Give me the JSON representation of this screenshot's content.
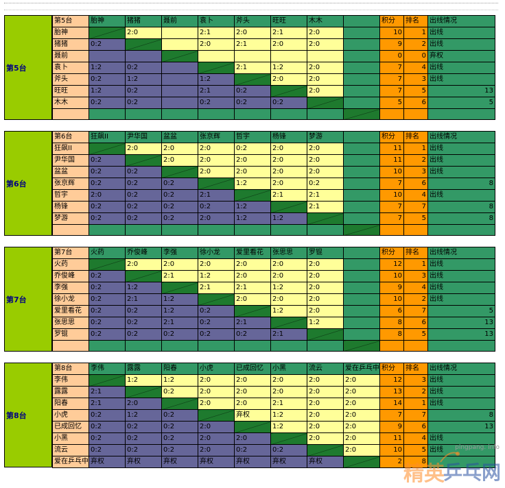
{
  "groups": [
    {
      "label": "第5台",
      "corner": "第5台",
      "players": [
        "胎神",
        "猪猪",
        "聂前",
        "袁卜",
        "斧头",
        "旺旺",
        "木木"
      ],
      "headers": [
        "积分",
        "排名",
        "出线情况"
      ],
      "rows": [
        {
          "name": "胎神",
          "cells": [
            "D",
            "2:0",
            "",
            "2:1",
            "2:0",
            "2:1",
            "2:0",
            ""
          ],
          "points": "10",
          "rank": "1",
          "status": "出线"
        },
        {
          "name": "猪猪",
          "cells": [
            "0:2",
            "D",
            "",
            "2:0",
            "2:1",
            "2:0",
            "2:0",
            ""
          ],
          "points": "9",
          "rank": "2",
          "status": "出线"
        },
        {
          "name": "聂前",
          "cells": [
            "",
            "",
            "D",
            "",
            "",
            "",
            "",
            ""
          ],
          "points": "0",
          "rank": "0",
          "status": "弃权"
        },
        {
          "name": "袁卜",
          "cells": [
            "1:2",
            "0:2",
            "",
            "D",
            "2:1",
            "1:2",
            "2:0",
            ""
          ],
          "points": "7",
          "rank": "4",
          "status": "出线"
        },
        {
          "name": "斧头",
          "cells": [
            "0:2",
            "1:2",
            "",
            "1:2",
            "D",
            "2:0",
            "2:0",
            ""
          ],
          "points": "7",
          "rank": "3",
          "status": "出线"
        },
        {
          "name": "旺旺",
          "cells": [
            "1:2",
            "0:2",
            "",
            "2:1",
            "0:2",
            "D",
            "2:0",
            ""
          ],
          "points": "7",
          "rank": "5",
          "status": "13"
        },
        {
          "name": "木木",
          "cells": [
            "0:2",
            "0:2",
            "",
            "0:2",
            "0:2",
            "0:2",
            "D",
            ""
          ],
          "points": "5",
          "rank": "6",
          "status": "5"
        }
      ]
    },
    {
      "label": "第6台",
      "corner": "第6台",
      "players": [
        "狂飙II",
        "尹华国",
        "盆盆",
        "张京辉",
        "哲宇",
        "杨锋",
        "梦游"
      ],
      "headers": [
        "积分",
        "排名",
        "出线情况"
      ],
      "rows": [
        {
          "name": "狂飙II",
          "cells": [
            "D",
            "2:0",
            "2:0",
            "2:0",
            "0:2",
            "2:0",
            "2:0",
            ""
          ],
          "points": "11",
          "rank": "1",
          "status": "出线"
        },
        {
          "name": "尹华国",
          "cells": [
            "0:2",
            "D",
            "2:0",
            "2:0",
            "2:0",
            "2:0",
            "2:0",
            ""
          ],
          "points": "11",
          "rank": "2",
          "status": "出线"
        },
        {
          "name": "盆盆",
          "cells": [
            "0:2",
            "0:2",
            "D",
            "2:0",
            "2:0",
            "2:0",
            "2:0",
            ""
          ],
          "points": "10",
          "rank": "3",
          "status": "出线"
        },
        {
          "name": "张京辉",
          "cells": [
            "0:2",
            "0:2",
            "0:2",
            "D",
            "1:2",
            "2:0",
            "0:2",
            ""
          ],
          "points": "7",
          "rank": "6",
          "status": "8"
        },
        {
          "name": "哲宇",
          "cells": [
            "2:0",
            "0:2",
            "0:2",
            "2:1",
            "D",
            "2:1",
            "2:1",
            ""
          ],
          "points": "10",
          "rank": "4",
          "status": "出线"
        },
        {
          "name": "杨锋",
          "cells": [
            "0:2",
            "0:2",
            "0:2",
            "0:2",
            "1:2",
            "D",
            "2:1",
            ""
          ],
          "points": "7",
          "rank": "7",
          "status": "8"
        },
        {
          "name": "梦游",
          "cells": [
            "0:2",
            "0:2",
            "0:2",
            "2:0",
            "1:2",
            "1:2",
            "D",
            ""
          ],
          "points": "7",
          "rank": "5",
          "status": "8"
        }
      ]
    },
    {
      "label": "第7台",
      "corner": "第7台",
      "players": [
        "火药",
        "乔俊峰",
        "李强",
        "徐小龙",
        "爱里看花",
        "张思思",
        "罗锟"
      ],
      "headers": [
        "积分",
        "排名",
        "出线情况"
      ],
      "rows": [
        {
          "name": "火药",
          "cells": [
            "D",
            "2:0",
            "2:0",
            "2:0",
            "2:0",
            "2:0",
            "2:0",
            ""
          ],
          "points": "12",
          "rank": "1",
          "status": "出线"
        },
        {
          "name": "乔俊峰",
          "cells": [
            "0:2",
            "D",
            "2:1",
            "1:2",
            "2:0",
            "2:0",
            "2:0",
            ""
          ],
          "points": "10",
          "rank": "3",
          "status": "出线"
        },
        {
          "name": "李强",
          "cells": [
            "0:2",
            "1:2",
            "D",
            "2:1",
            "2:1",
            "1:2",
            "2:0",
            ""
          ],
          "points": "9",
          "rank": "4",
          "status": "出线"
        },
        {
          "name": "徐小龙",
          "cells": [
            "0:2",
            "2:1",
            "1:2",
            "D",
            "2:0",
            "2:0",
            "2:0",
            ""
          ],
          "points": "10",
          "rank": "2",
          "status": "出线"
        },
        {
          "name": "爱里看花",
          "cells": [
            "0:2",
            "0:2",
            "1:2",
            "0:2",
            "D",
            "1:2",
            "2:0",
            ""
          ],
          "points": "6",
          "rank": "7",
          "status": "5"
        },
        {
          "name": "张思思",
          "cells": [
            "0:2",
            "0:2",
            "2:1",
            "0:2",
            "2:1",
            "D",
            "1:2",
            ""
          ],
          "points": "8",
          "rank": "6",
          "status": "13"
        },
        {
          "name": "罗锟",
          "cells": [
            "0:2",
            "0:2",
            "0:2",
            "0:2",
            "0:2",
            "2:1",
            "D",
            ""
          ],
          "points": "8",
          "rank": "5",
          "status": "13"
        }
      ]
    },
    {
      "label": "第8台",
      "corner": "第8台",
      "players": [
        "李伟",
        "露露",
        "阳春",
        "小虎",
        "已成回忆",
        "小黑",
        "流云",
        "爱在乒乓中"
      ],
      "headers": [
        "积分",
        "排名",
        "出线情况"
      ],
      "rows": [
        {
          "name": "李伟",
          "cells": [
            "D",
            "1:2",
            "1:2",
            "2:0",
            "2:0",
            "2:0",
            "2:0",
            "2:0"
          ],
          "points": "12",
          "rank": "3",
          "status": "出线"
        },
        {
          "name": "露露",
          "cells": [
            "2:1",
            "D",
            "0:2",
            "2:0",
            "2:0",
            "2:0",
            "2:0",
            "2:0"
          ],
          "points": "13",
          "rank": "2",
          "status": "出线"
        },
        {
          "name": "阳春",
          "cells": [
            "2:1",
            "2:0",
            "D",
            "2:0",
            "2:0",
            "2:1",
            "2:0",
            "2:0"
          ],
          "points": "14",
          "rank": "1",
          "status": "出线"
        },
        {
          "name": "小虎",
          "cells": [
            "0:2",
            "1:2",
            "0:2",
            "D",
            "弃权",
            "1:2",
            "2:0",
            "2:0"
          ],
          "points": "7",
          "rank": "7",
          "status": "8"
        },
        {
          "name": "已成回忆",
          "cells": [
            "0:2",
            "0:2",
            "0:2",
            "2:0",
            "D",
            "1:2",
            "2:0",
            "2:0"
          ],
          "points": "9",
          "rank": "6",
          "status": "13"
        },
        {
          "name": "小黑",
          "cells": [
            "0:2",
            "0:2",
            "0:2",
            "2:0",
            "2:0",
            "D",
            "2:0",
            "2:0"
          ],
          "points": "11",
          "rank": "4",
          "status": "出线"
        },
        {
          "name": "流云",
          "cells": [
            "0:2",
            "0:2",
            "0:2",
            "2:0",
            "0:2",
            "0:2",
            "D",
            "2:0"
          ],
          "points": "10",
          "rank": "5",
          "status": "出线"
        },
        {
          "name": "爱在乒乓中",
          "cells": [
            "弃权",
            "弃权",
            "弃权",
            "弃权",
            "弃权",
            "弃权",
            "弃权",
            "D"
          ],
          "points": "2",
          "rank": "8",
          "status": ""
        }
      ]
    }
  ],
  "watermark": {
    "url": "pingpang. info",
    "text1": "精英",
    "text2": "乒乓网"
  },
  "colors": {
    "header": "#339966",
    "name": "#ffcc99",
    "win": "#ffff99",
    "loss": "#666699",
    "diag": "#1e7a2e",
    "score": "#ff9900",
    "group": "#99cc00",
    "group_text": "#000080"
  }
}
